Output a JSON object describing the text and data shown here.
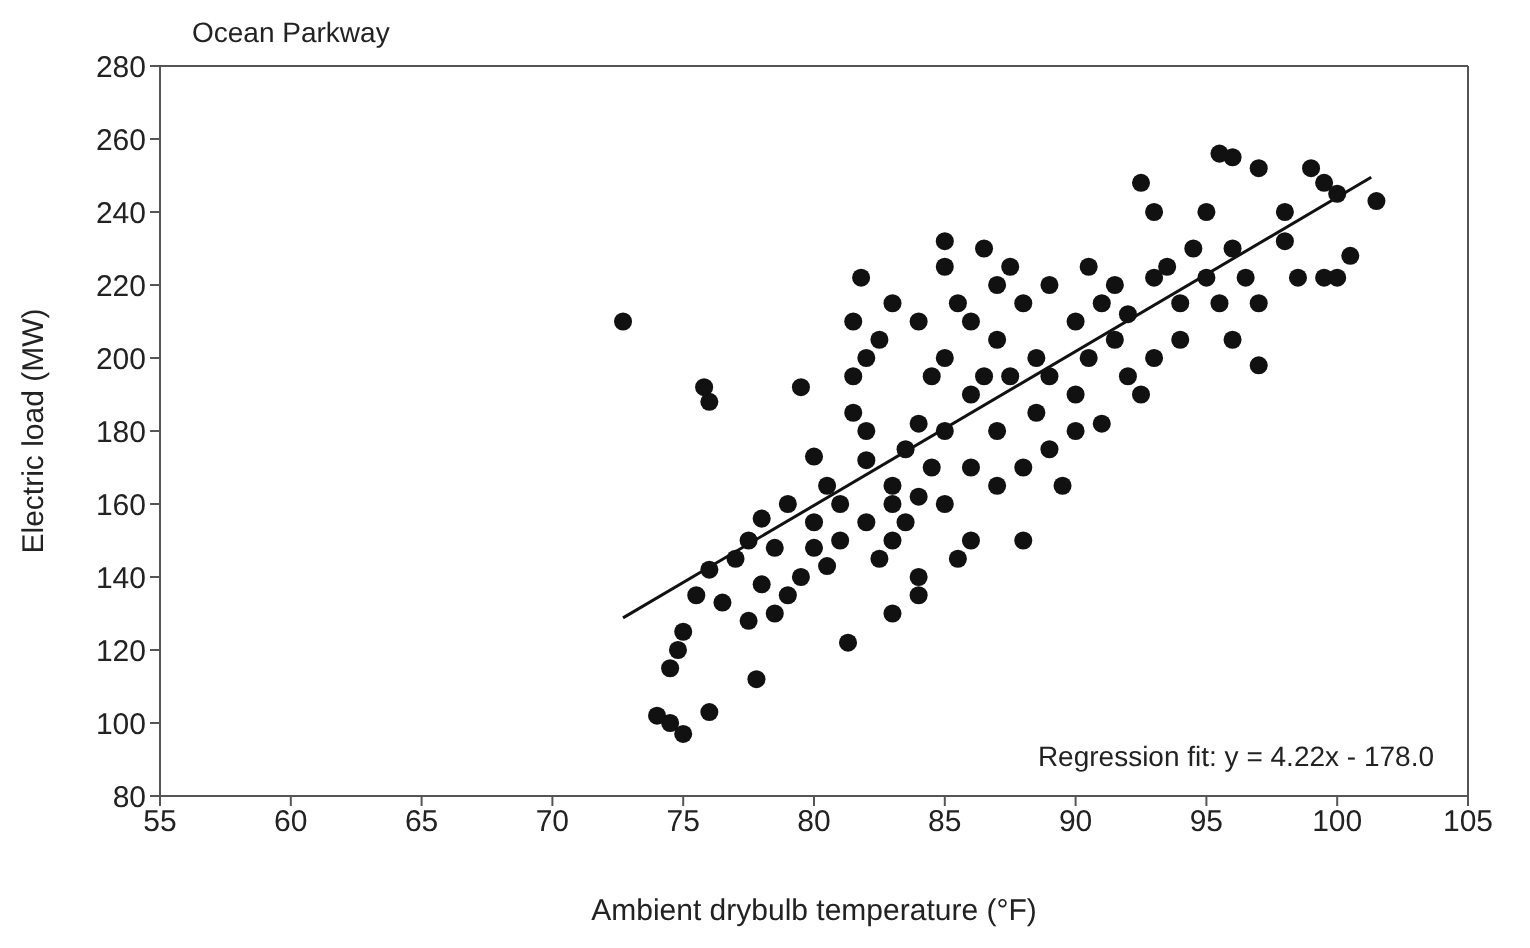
{
  "chart_data": {
    "type": "scatter",
    "title": "Ocean Parkway",
    "xlabel": "Ambient drybulb temperature (°F)",
    "ylabel": "Electric load (MW)",
    "xlim": [
      55,
      105
    ],
    "xticks": [
      55,
      60,
      65,
      70,
      75,
      80,
      85,
      90,
      95,
      100,
      105
    ],
    "ylim": [
      80,
      280
    ],
    "yticks": [
      80,
      100,
      120,
      140,
      160,
      180,
      200,
      220,
      240,
      260,
      280
    ],
    "marker": "circle",
    "annotations": [
      "Regression fit: y = 4.22x - 178.0"
    ],
    "series": [
      {
        "color": "#111111",
        "x": [
          72.7,
          75.8,
          76,
          74,
          74.5,
          75,
          74.5,
          74.8,
          75,
          76,
          77.8,
          77.5,
          76.5,
          75.5,
          76,
          77,
          77.5,
          78,
          78,
          78.5,
          79,
          79.5,
          79.5,
          80,
          80,
          80.5,
          80.5,
          81,
          81,
          81.3,
          81.5,
          81.5,
          81.5,
          81.8,
          82,
          82,
          82,
          82.5,
          82.5,
          83,
          83,
          83,
          83,
          83.5,
          83.5,
          84,
          84,
          84,
          84,
          84.5,
          84.5,
          85,
          85,
          85,
          85,
          85,
          85.5,
          85.5,
          86,
          86,
          86,
          86,
          86.5,
          86.5,
          87,
          87,
          87,
          87,
          87.5,
          87.5,
          88,
          88,
          88,
          88.5,
          88.5,
          89,
          89,
          89,
          89.5,
          90,
          90,
          90,
          90.5,
          90.5,
          91,
          91,
          91.5,
          91.5,
          92,
          92,
          92.5,
          92.5,
          93,
          93,
          93,
          93.5,
          94,
          94,
          94.5,
          95,
          95,
          95.5,
          95.5,
          96,
          96,
          96,
          96.5,
          97,
          97,
          97,
          98,
          98,
          98.5,
          99,
          99.5,
          99.5,
          100,
          100,
          100.5,
          101.5,
          84,
          83,
          82,
          79,
          80,
          78.5
        ],
        "values": [
          210,
          192,
          188,
          102,
          100,
          97,
          115,
          120,
          125,
          103,
          112,
          128,
          133,
          135,
          142,
          145,
          150,
          156,
          138,
          130,
          135,
          192,
          140,
          155,
          148,
          165,
          143,
          150,
          160,
          122,
          210,
          195,
          185,
          222,
          200,
          172,
          155,
          205,
          145,
          165,
          160,
          150,
          215,
          175,
          155,
          210,
          162,
          182,
          140,
          195,
          170,
          232,
          225,
          200,
          180,
          160,
          215,
          145,
          210,
          190,
          170,
          150,
          230,
          195,
          220,
          205,
          180,
          165,
          225,
          195,
          215,
          170,
          150,
          200,
          185,
          220,
          175,
          195,
          165,
          210,
          190,
          180,
          225,
          200,
          215,
          182,
          205,
          220,
          195,
          212,
          248,
          190,
          222,
          200,
          240,
          225,
          215,
          205,
          230,
          222,
          240,
          256,
          215,
          255,
          230,
          205,
          222,
          252,
          198,
          215,
          232,
          240,
          222,
          252,
          222,
          248,
          222,
          245,
          228,
          243,
          135,
          130,
          180,
          160,
          173,
          148
        ]
      },
      {
        "type": "line",
        "color": "#111111",
        "marker": "none",
        "x": [
          72.7,
          101.3
        ],
        "values": [
          128.8,
          249.5
        ]
      }
    ]
  }
}
